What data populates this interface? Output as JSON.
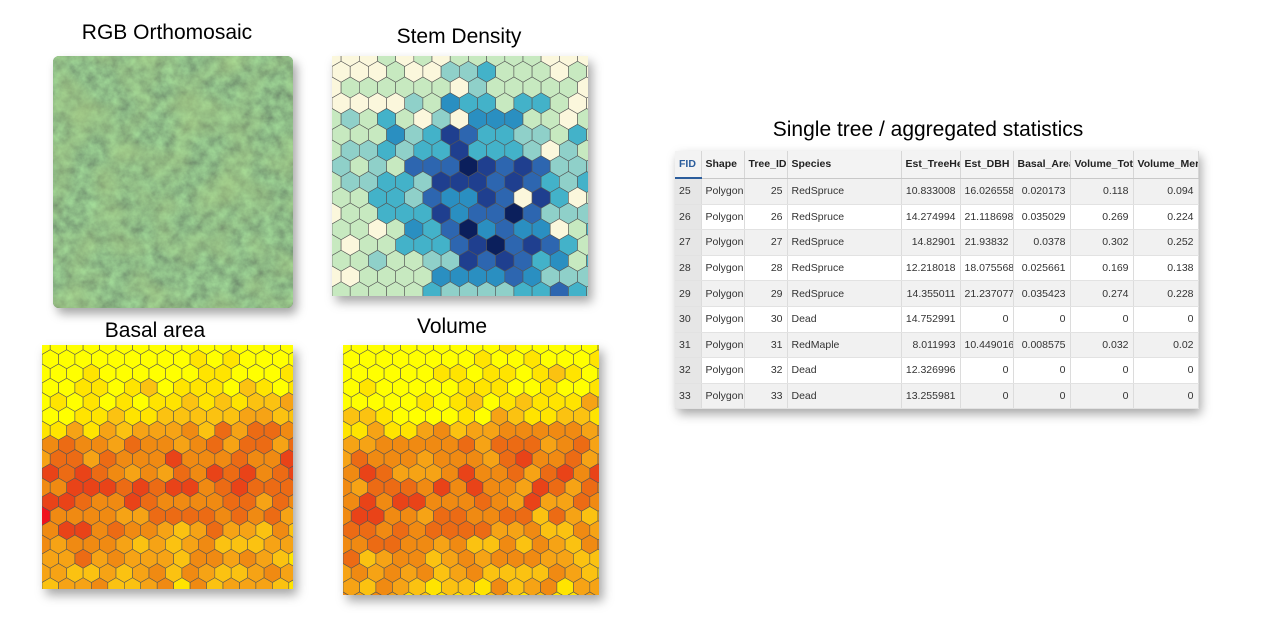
{
  "panels": {
    "rgb": {
      "title": "RGB Orthomosaic"
    },
    "stem": {
      "title": "Stem Density",
      "colors": [
        "#fbf7dc",
        "#c7e9c0",
        "#c7e9c0",
        "#8fd0c9",
        "#43b2c9",
        "#2a8fc1",
        "#2d66b0",
        "#1f3f8f",
        "#0b1f5c"
      ]
    },
    "basal": {
      "title": "Basal area",
      "colors": [
        "#ffff00",
        "#ffe400",
        "#fbc211",
        "#f6a315",
        "#f08a12",
        "#ec6b14",
        "#e94318",
        "#f0121d"
      ]
    },
    "volume": {
      "title": "Volume",
      "colors": [
        "#ffff00",
        "#ffe400",
        "#fbc211",
        "#f6a315",
        "#f08a12",
        "#ec6b14",
        "#e94318",
        "#f0121d"
      ]
    }
  },
  "table": {
    "title": "Single tree / aggregated statistics",
    "columns": [
      "FID",
      "Shape",
      "Tree_ID",
      "Species",
      "Est_TreeHe",
      "Est_DBH",
      "Basal_Area",
      "Volume_Tot",
      "Volume_Mer"
    ],
    "rows": [
      [
        "25",
        "Polygon",
        "25",
        "RedSpruce",
        "10.833008",
        "16.026558",
        "0.020173",
        "0.118",
        "0.094"
      ],
      [
        "26",
        "Polygon",
        "26",
        "RedSpruce",
        "14.274994",
        "21.118698",
        "0.035029",
        "0.269",
        "0.224"
      ],
      [
        "27",
        "Polygon",
        "27",
        "RedSpruce",
        "14.82901",
        "21.93832",
        "0.0378",
        "0.302",
        "0.252"
      ],
      [
        "28",
        "Polygon",
        "28",
        "RedSpruce",
        "12.218018",
        "18.075568",
        "0.025661",
        "0.169",
        "0.138"
      ],
      [
        "29",
        "Polygon",
        "29",
        "RedSpruce",
        "14.355011",
        "21.237077",
        "0.035423",
        "0.274",
        "0.228"
      ],
      [
        "30",
        "Polygon",
        "30",
        "Dead",
        "14.752991",
        "0",
        "0",
        "0",
        "0"
      ],
      [
        "31",
        "Polygon",
        "31",
        "RedMaple",
        "8.011993",
        "10.449016",
        "0.008575",
        "0.032",
        "0.02"
      ],
      [
        "32",
        "Polygon",
        "32",
        "Dead",
        "12.326996",
        "0",
        "0",
        "0",
        "0"
      ],
      [
        "33",
        "Polygon",
        "33",
        "Dead",
        "13.255981",
        "0",
        "0",
        "0",
        "0"
      ]
    ]
  }
}
